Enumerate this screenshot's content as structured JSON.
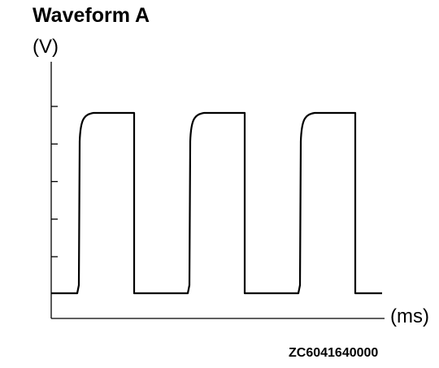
{
  "figure": {
    "title": "Waveform A",
    "figure_id": "ZC6041640000"
  },
  "colors": {
    "line": "#000000",
    "background": "#ffffff"
  },
  "chart_data": {
    "type": "line",
    "title": "Waveform A",
    "ylabel": "(V)",
    "xlabel": "(ms)",
    "y_tick_count": 6,
    "grid": false,
    "legend": "none",
    "series": [
      {
        "shape": "square-wave",
        "cycles": 3,
        "low_level": 0,
        "high_level": 5,
        "rounded_rising_edge": true
      }
    ]
  }
}
